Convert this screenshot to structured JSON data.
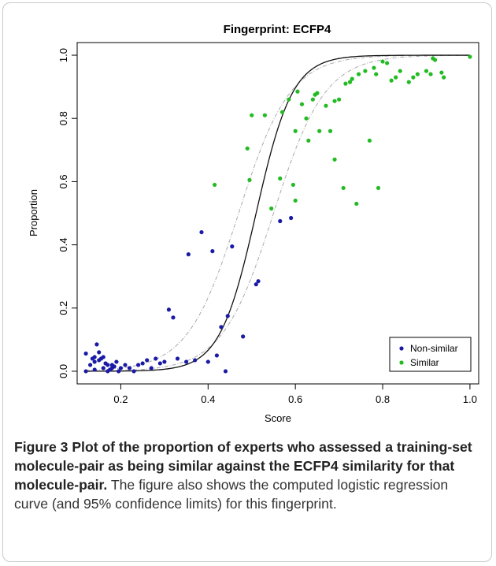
{
  "chart_data": {
    "type": "scatter",
    "title": "Fingerprint: ECFP4",
    "xlabel": "Score",
    "ylabel": "Proportion",
    "xlim": [
      0.1,
      1.02
    ],
    "ylim": [
      -0.04,
      1.04
    ],
    "x_ticks": [
      "0.2",
      "0.4",
      "0.6",
      "0.8",
      "1.0"
    ],
    "x_tick_values": [
      0.2,
      0.4,
      0.6,
      0.8,
      1.0
    ],
    "y_ticks": [
      "0.0",
      "0.2",
      "0.4",
      "0.6",
      "0.8",
      "1.0"
    ],
    "y_tick_values": [
      0.0,
      0.2,
      0.4,
      0.6,
      0.8,
      1.0
    ],
    "legend": {
      "position": "bottom-right"
    },
    "series": [
      {
        "name": "Non-similar",
        "color": "#1a1aa6",
        "points": [
          [
            0.12,
            0.0
          ],
          [
            0.13,
            0.02
          ],
          [
            0.12,
            0.056
          ],
          [
            0.14,
            0.03
          ],
          [
            0.135,
            0.04
          ],
          [
            0.14,
            0.045
          ],
          [
            0.145,
            0.085
          ],
          [
            0.15,
            0.035
          ],
          [
            0.15,
            0.06
          ],
          [
            0.155,
            0.04
          ],
          [
            0.16,
            0.01
          ],
          [
            0.16,
            0.045
          ],
          [
            0.165,
            0.025
          ],
          [
            0.17,
            0.02
          ],
          [
            0.175,
            0.005
          ],
          [
            0.18,
            0.01
          ],
          [
            0.18,
            0.02
          ],
          [
            0.19,
            0.03
          ],
          [
            0.195,
            0.0
          ],
          [
            0.2,
            0.01
          ],
          [
            0.21,
            0.02
          ],
          [
            0.22,
            0.01
          ],
          [
            0.23,
            0.0
          ],
          [
            0.24,
            0.02
          ],
          [
            0.25,
            0.025
          ],
          [
            0.26,
            0.035
          ],
          [
            0.27,
            0.01
          ],
          [
            0.28,
            0.04
          ],
          [
            0.29,
            0.025
          ],
          [
            0.3,
            0.03
          ],
          [
            0.31,
            0.195
          ],
          [
            0.32,
            0.17
          ],
          [
            0.33,
            0.04
          ],
          [
            0.35,
            0.03
          ],
          [
            0.355,
            0.37
          ],
          [
            0.37,
            0.035
          ],
          [
            0.385,
            0.44
          ],
          [
            0.4,
            0.03
          ],
          [
            0.41,
            0.38
          ],
          [
            0.42,
            0.05
          ],
          [
            0.43,
            0.14
          ],
          [
            0.44,
            0.0
          ],
          [
            0.445,
            0.175
          ],
          [
            0.455,
            0.395
          ],
          [
            0.48,
            0.11
          ],
          [
            0.51,
            0.275
          ],
          [
            0.515,
            0.285
          ],
          [
            0.565,
            0.475
          ],
          [
            0.59,
            0.485
          ],
          [
            0.14,
            0.005
          ],
          [
            0.17,
            0.0
          ],
          [
            0.185,
            0.015
          ]
        ]
      },
      {
        "name": "Similar",
        "color": "#22bb22",
        "points": [
          [
            0.415,
            0.59
          ],
          [
            0.49,
            0.705
          ],
          [
            0.495,
            0.605
          ],
          [
            0.5,
            0.81
          ],
          [
            0.53,
            0.81
          ],
          [
            0.545,
            0.515
          ],
          [
            0.565,
            0.61
          ],
          [
            0.57,
            0.82
          ],
          [
            0.585,
            0.86
          ],
          [
            0.595,
            0.59
          ],
          [
            0.6,
            0.54
          ],
          [
            0.6,
            0.76
          ],
          [
            0.605,
            0.885
          ],
          [
            0.615,
            0.845
          ],
          [
            0.625,
            0.8
          ],
          [
            0.63,
            0.73
          ],
          [
            0.64,
            0.86
          ],
          [
            0.645,
            0.875
          ],
          [
            0.65,
            0.88
          ],
          [
            0.655,
            0.76
          ],
          [
            0.67,
            0.84
          ],
          [
            0.68,
            0.76
          ],
          [
            0.69,
            0.855
          ],
          [
            0.69,
            0.67
          ],
          [
            0.7,
            0.86
          ],
          [
            0.715,
            0.91
          ],
          [
            0.725,
            0.915
          ],
          [
            0.73,
            0.925
          ],
          [
            0.74,
            0.53
          ],
          [
            0.745,
            0.94
          ],
          [
            0.76,
            0.95
          ],
          [
            0.77,
            0.73
          ],
          [
            0.78,
            0.96
          ],
          [
            0.785,
            0.94
          ],
          [
            0.79,
            0.58
          ],
          [
            0.8,
            0.98
          ],
          [
            0.81,
            0.975
          ],
          [
            0.82,
            0.92
          ],
          [
            0.83,
            0.93
          ],
          [
            0.84,
            0.95
          ],
          [
            0.86,
            0.915
          ],
          [
            0.87,
            0.93
          ],
          [
            0.88,
            0.94
          ],
          [
            0.9,
            0.95
          ],
          [
            0.91,
            0.94
          ],
          [
            0.915,
            0.99
          ],
          [
            0.92,
            0.985
          ],
          [
            0.935,
            0.945
          ],
          [
            0.94,
            0.93
          ],
          [
            1.0,
            0.995
          ],
          [
            0.71,
            0.58
          ]
        ]
      }
    ],
    "curve": {
      "label": "logistic regression curve",
      "center": 0.51,
      "steepness": 24,
      "lower_center": 0.55,
      "upper_center": 0.47,
      "band_steepness": 17
    }
  },
  "caption": {
    "lead": "Figure 3 Plot of the proportion of experts who assessed a training-set molecule-pair as being similar against the ECFP4 similarity for that molecule-pair.",
    "rest": " The figure also shows the computed logistic regression curve (and 95% confidence limits) for this fingerprint."
  }
}
